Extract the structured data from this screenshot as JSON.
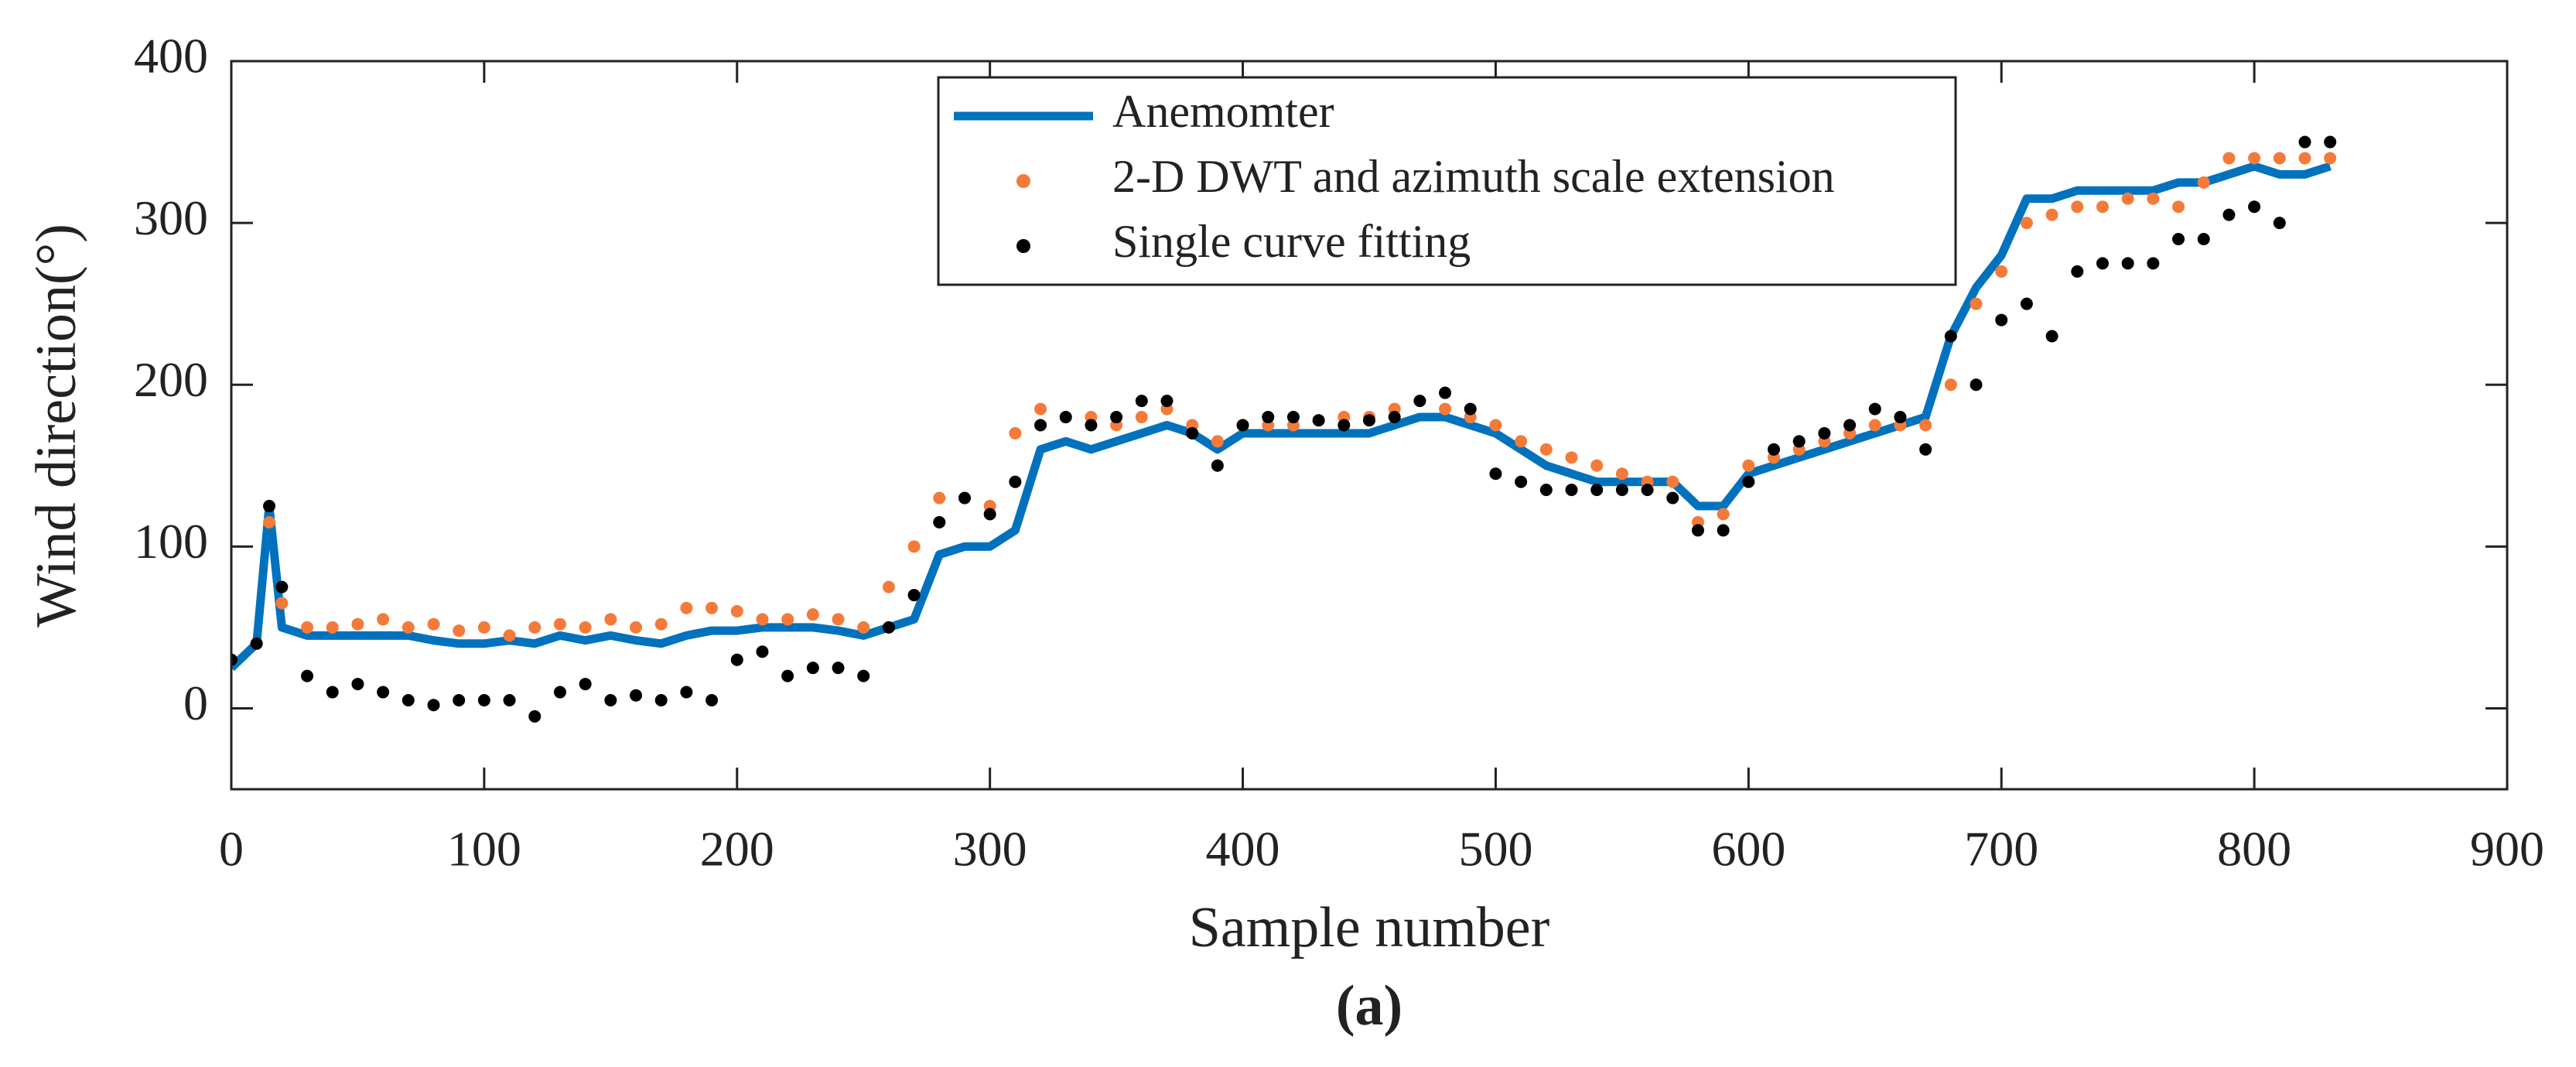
{
  "chart_data": {
    "type": "line_scatter",
    "xlabel": "Sample number",
    "ylabel": "Wind direction(°)",
    "caption": "(a)",
    "xlim": [
      0,
      900
    ],
    "xticks": [
      0,
      100,
      200,
      300,
      400,
      500,
      600,
      700,
      800,
      900
    ],
    "ylim": [
      -50,
      400
    ],
    "yticks": [
      0,
      100,
      200,
      300,
      400
    ],
    "legend": "top-center",
    "x": [
      0,
      10,
      15,
      20,
      30,
      40,
      50,
      60,
      70,
      80,
      90,
      100,
      110,
      120,
      130,
      140,
      150,
      160,
      170,
      180,
      190,
      200,
      210,
      220,
      230,
      240,
      250,
      260,
      270,
      280,
      290,
      300,
      310,
      320,
      330,
      340,
      350,
      360,
      370,
      380,
      390,
      400,
      410,
      420,
      430,
      440,
      450,
      460,
      470,
      480,
      490,
      500,
      510,
      520,
      530,
      540,
      550,
      560,
      570,
      580,
      590,
      600,
      610,
      620,
      630,
      640,
      650,
      660,
      670,
      680,
      690,
      700,
      710,
      720,
      730,
      740,
      750,
      760,
      770,
      780,
      790,
      800,
      810,
      820,
      830
    ],
    "series": [
      {
        "name": "Anemomter",
        "style": "line",
        "color": "#0072bd",
        "values": [
          25,
          40,
          125,
          50,
          45,
          45,
          45,
          45,
          45,
          42,
          40,
          40,
          42,
          40,
          45,
          42,
          45,
          42,
          40,
          45,
          48,
          48,
          50,
          50,
          50,
          48,
          45,
          50,
          55,
          95,
          100,
          100,
          110,
          160,
          165,
          160,
          165,
          170,
          175,
          170,
          160,
          170,
          170,
          170,
          170,
          170,
          170,
          175,
          180,
          180,
          175,
          170,
          160,
          150,
          145,
          140,
          140,
          140,
          140,
          125,
          125,
          145,
          150,
          155,
          160,
          165,
          170,
          175,
          180,
          230,
          260,
          280,
          315,
          315,
          320,
          320,
          320,
          320,
          325,
          325,
          330,
          335,
          330,
          330,
          335
        ]
      },
      {
        "name": "2-D DWT and azimuth scale extension",
        "style": "scatter",
        "color": "#f47a3a",
        "values": [
          30,
          40,
          115,
          65,
          50,
          50,
          52,
          55,
          50,
          52,
          48,
          50,
          45,
          50,
          52,
          50,
          55,
          50,
          52,
          62,
          62,
          60,
          55,
          55,
          58,
          55,
          50,
          75,
          100,
          130,
          130,
          125,
          170,
          185,
          180,
          180,
          175,
          180,
          185,
          175,
          165,
          175,
          175,
          175,
          178,
          180,
          180,
          185,
          190,
          185,
          180,
          175,
          165,
          160,
          155,
          150,
          145,
          140,
          140,
          115,
          120,
          150,
          155,
          160,
          165,
          170,
          175,
          175,
          175,
          200,
          250,
          270,
          300,
          305,
          310,
          310,
          315,
          315,
          310,
          325,
          340,
          340,
          340,
          340,
          340
        ]
      },
      {
        "name": "Single curve fitting",
        "style": "scatter",
        "color": "#000000",
        "values": [
          30,
          40,
          125,
          75,
          20,
          10,
          15,
          10,
          5,
          2,
          5,
          5,
          5,
          -5,
          10,
          15,
          5,
          8,
          5,
          10,
          5,
          30,
          35,
          20,
          25,
          25,
          20,
          50,
          70,
          115,
          130,
          120,
          140,
          175,
          180,
          175,
          180,
          190,
          190,
          170,
          150,
          175,
          180,
          180,
          178,
          175,
          178,
          180,
          190,
          195,
          185,
          145,
          140,
          135,
          135,
          135,
          135,
          135,
          130,
          110,
          110,
          140,
          160,
          165,
          170,
          175,
          185,
          180,
          160,
          230,
          200,
          240,
          250,
          230,
          270,
          275,
          275,
          275,
          290,
          290,
          305,
          310,
          300,
          350,
          350
        ]
      }
    ]
  }
}
